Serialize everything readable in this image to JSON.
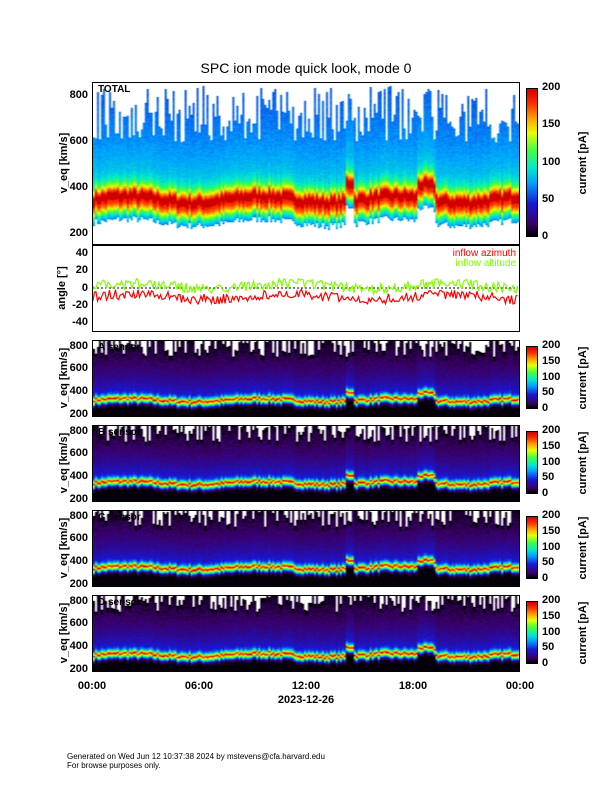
{
  "title": "SPC ion mode quick look, mode 0",
  "footer": {
    "line1": "Generated on Wed Jun 12 10:37:38 2024 by mstevens@cfa.harvard.edu",
    "line2": "For browse purposes only."
  },
  "chart_data": [
    {
      "type": "heatmap",
      "name": "total",
      "tag": "TOTAL",
      "ylabel": "v_eq [km/s]",
      "ylim": [
        150,
        860
      ],
      "yticks": [
        "200",
        "400",
        "600",
        "800"
      ],
      "colorbar": {
        "label": "current [pA]",
        "range": [
          0,
          200
        ],
        "ticks": [
          "0",
          "50",
          "100",
          "150",
          "200"
        ]
      },
      "core_speed_kms": 330,
      "background": "white"
    },
    {
      "type": "line",
      "name": "angle",
      "ylabel": "angle [°]",
      "ylim": [
        -50,
        50
      ],
      "yticks": [
        "40",
        "20",
        "0",
        "-20",
        "-40"
      ],
      "series": [
        {
          "name": "inflow azimuth",
          "color": "#ff0000",
          "mean": -10
        },
        {
          "name": "inflow altitude",
          "color": "#80ff00",
          "mean": 2
        }
      ]
    },
    {
      "type": "heatmap",
      "name": "a-sensor",
      "tag": "A sensor",
      "ylabel": "v_eq [km/s]",
      "ylim": [
        180,
        860
      ],
      "yticks": [
        "200",
        "400",
        "600",
        "800"
      ],
      "colorbar": {
        "label": "current [pA]",
        "range": [
          0,
          200
        ],
        "ticks": [
          "0",
          "50",
          "100",
          "150",
          "200"
        ]
      },
      "core_speed_kms": 320
    },
    {
      "type": "heatmap",
      "name": "b-sensor",
      "tag": "B sensor",
      "ylabel": "v_eq [km/s]",
      "ylim": [
        180,
        860
      ],
      "yticks": [
        "200",
        "400",
        "600",
        "800"
      ],
      "colorbar": {
        "label": "current [pA]",
        "range": [
          0,
          200
        ],
        "ticks": [
          "0",
          "50",
          "100",
          "150",
          "200"
        ]
      },
      "core_speed_kms": 340
    },
    {
      "type": "heatmap",
      "name": "c-sensor",
      "tag": "C sensor",
      "ylabel": "v_eq [km/s]",
      "ylim": [
        180,
        860
      ],
      "yticks": [
        "200",
        "400",
        "600",
        "800"
      ],
      "colorbar": {
        "label": "current [pA]",
        "range": [
          0,
          200
        ],
        "ticks": [
          "0",
          "50",
          "100",
          "150",
          "200"
        ]
      },
      "core_speed_kms": 340
    },
    {
      "type": "heatmap",
      "name": "d-sensor",
      "tag": "D sensor",
      "ylabel": "v_eq [km/s]",
      "ylim": [
        180,
        860
      ],
      "yticks": [
        "200",
        "400",
        "600",
        "800"
      ],
      "colorbar": {
        "label": "current [pA]",
        "range": [
          0,
          200
        ],
        "ticks": [
          "0",
          "50",
          "100",
          "150",
          "200"
        ]
      },
      "core_speed_kms": 320
    }
  ],
  "xaxis": {
    "ticks": [
      "00:00",
      "06:00",
      "12:00",
      "18:00",
      "00:00"
    ],
    "label": "2023-12-26"
  }
}
